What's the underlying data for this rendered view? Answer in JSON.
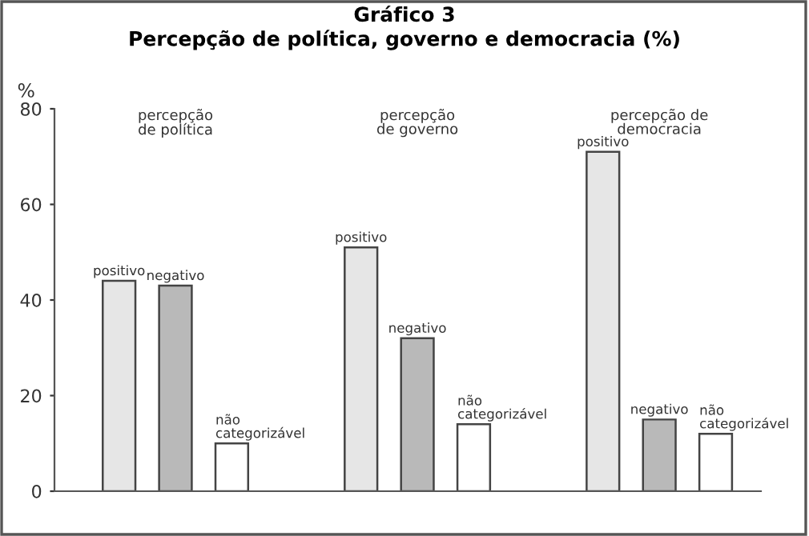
{
  "chart_data": {
    "type": "bar",
    "title": "Gráfico 3",
    "subtitle": "Percepção de política, governo e democracia (%)",
    "ylabel": "%",
    "categories": [
      "percepção\nde política",
      "percepção\nde governo",
      "percepção de\ndemocracia"
    ],
    "series": [
      {
        "name": "positivo",
        "color": "#e6e6e6",
        "values": [
          44,
          51,
          71
        ]
      },
      {
        "name": "negativo",
        "color": "#b9b9b9",
        "values": [
          43,
          32,
          15
        ]
      },
      {
        "name": "não\ncategorizável",
        "color": "#ffffff",
        "values": [
          10,
          14,
          12
        ]
      }
    ],
    "ylim": [
      0,
      80
    ],
    "yticks": [
      0,
      20,
      40,
      60,
      80
    ],
    "grid": false,
    "legend": false
  }
}
